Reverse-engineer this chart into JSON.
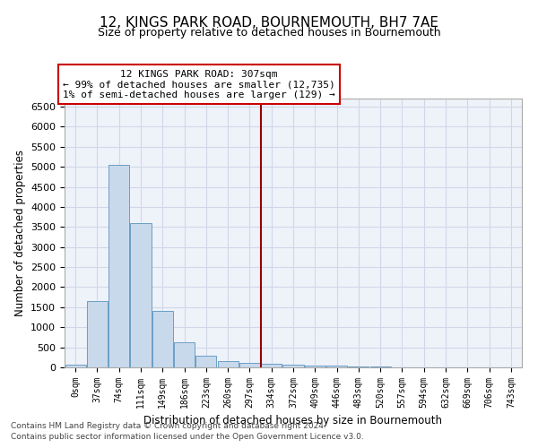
{
  "title": "12, KINGS PARK ROAD, BOURNEMOUTH, BH7 7AE",
  "subtitle": "Size of property relative to detached houses in Bournemouth",
  "xlabel": "Distribution of detached houses by size in Bournemouth",
  "ylabel": "Number of detached properties",
  "bar_labels": [
    "0sqm",
    "37sqm",
    "74sqm",
    "111sqm",
    "149sqm",
    "186sqm",
    "223sqm",
    "260sqm",
    "297sqm",
    "334sqm",
    "372sqm",
    "409sqm",
    "446sqm",
    "483sqm",
    "520sqm",
    "557sqm",
    "594sqm",
    "632sqm",
    "669sqm",
    "706sqm",
    "743sqm"
  ],
  "bar_values": [
    75,
    1650,
    5050,
    3600,
    1400,
    620,
    290,
    155,
    115,
    80,
    65,
    50,
    35,
    25,
    15,
    10,
    8,
    5,
    4,
    3,
    2
  ],
  "bar_color": "#c9d9ec",
  "bar_edge_color": "#6a9ec5",
  "grid_color": "#d0d8e8",
  "background_color": "#eef2f9",
  "vline_x_index": 8,
  "vline_color": "#990000",
  "ylim": [
    0,
    6700
  ],
  "yticks": [
    0,
    500,
    1000,
    1500,
    2000,
    2500,
    3000,
    3500,
    4000,
    4500,
    5000,
    5500,
    6000,
    6500
  ],
  "annotation_title": "12 KINGS PARK ROAD: 307sqm",
  "annotation_line1": "← 99% of detached houses are smaller (12,735)",
  "annotation_line2": "1% of semi-detached houses are larger (129) →",
  "annotation_box_color": "#cc0000",
  "footer_line1": "Contains HM Land Registry data © Crown copyright and database right 2024.",
  "footer_line2": "Contains public sector information licensed under the Open Government Licence v3.0."
}
